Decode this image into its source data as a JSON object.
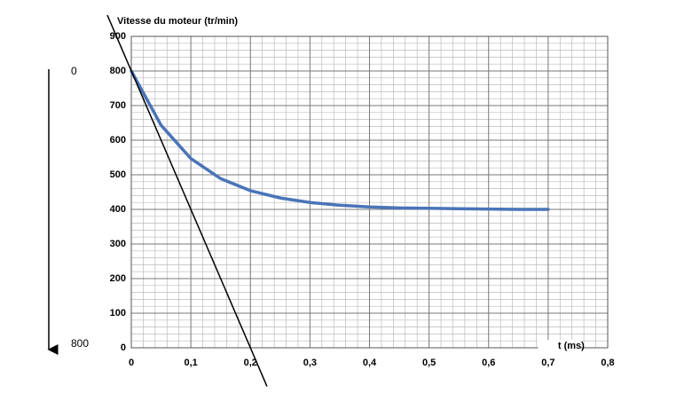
{
  "chart_data": {
    "type": "line",
    "y_label": "Vitesse du moteur (tr/min)",
    "x_label": "t (ms)",
    "xlim": [
      0,
      0.8
    ],
    "ylim": [
      0,
      900
    ],
    "xticks": [
      0,
      {
        "value": 0.1,
        "label": "0,1"
      },
      {
        "value": 0.2,
        "label": "0,2"
      },
      {
        "value": 0.3,
        "label": "0,3"
      },
      {
        "value": 0.4,
        "label": "0,4"
      },
      {
        "value": 0.5,
        "label": "0,5"
      },
      {
        "value": 0.6,
        "label": "0,6"
      },
      {
        "value": 0.7,
        "label": "0,7"
      },
      {
        "value": 0.8,
        "label": "0,8"
      }
    ],
    "yticks": [
      0,
      100,
      200,
      300,
      400,
      500,
      600,
      700,
      800,
      900
    ],
    "grid": true,
    "minor_divisions": 5,
    "series": [
      {
        "color": "#4a74b8",
        "x": [
          0,
          0.05,
          0.1,
          0.15,
          0.2,
          0.25,
          0.3,
          0.35,
          0.4,
          0.45,
          0.5,
          0.55,
          0.6,
          0.65,
          0.7
        ],
        "values": [
          800,
          643,
          547,
          489,
          454,
          433,
          420,
          412,
          407,
          404,
          403,
          402,
          401,
          400,
          400
        ]
      },
      {
        "color": "#000000",
        "x": [
          -0.04,
          0.2275
        ],
        "values": [
          960,
          -110
        ]
      }
    ],
    "side_scale": {
      "top": "0",
      "bottom": "800"
    }
  }
}
